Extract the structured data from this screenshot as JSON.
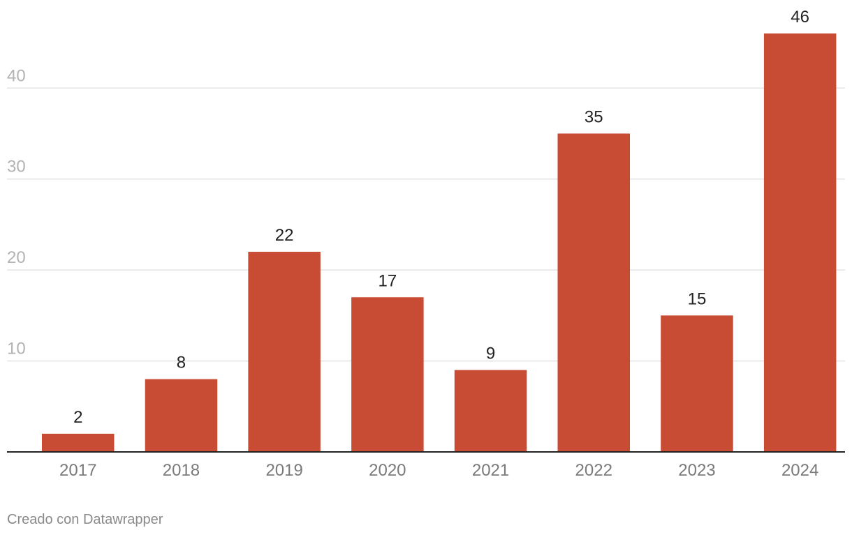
{
  "chart_data": {
    "type": "bar",
    "categories": [
      "2017",
      "2018",
      "2019",
      "2020",
      "2021",
      "2022",
      "2023",
      "2024"
    ],
    "values": [
      2,
      8,
      22,
      17,
      9,
      35,
      15,
      46
    ],
    "title": "",
    "xlabel": "",
    "ylabel": "",
    "ylim": [
      0,
      46
    ],
    "yticks": [
      10,
      20,
      30,
      40
    ],
    "grid": true,
    "legend": "none",
    "bar_color": "#c84b34",
    "data_labels": true
  },
  "footer": {
    "credit": "Creado con Datawrapper"
  }
}
